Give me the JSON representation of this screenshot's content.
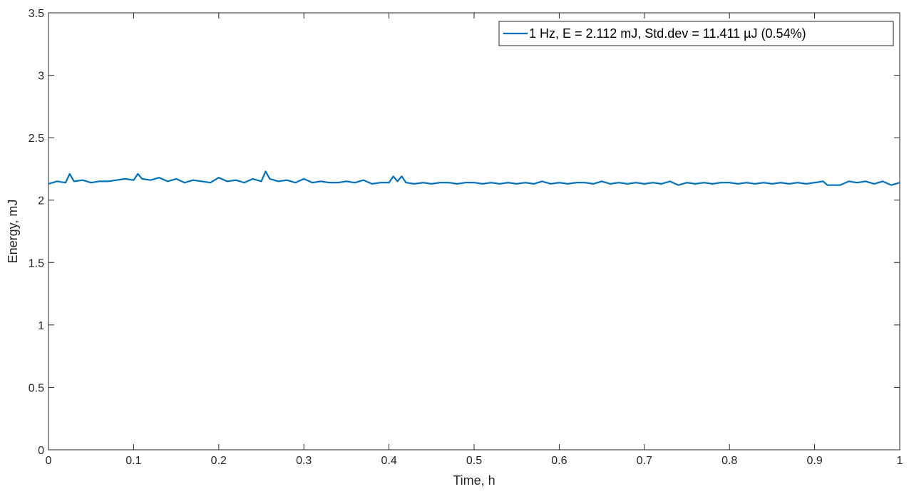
{
  "chart_data": {
    "type": "line",
    "title": "",
    "xlabel": "Time, h",
    "ylabel": "Energy, mJ",
    "xlim": [
      0,
      1
    ],
    "ylim": [
      0,
      3.5
    ],
    "x_ticks": [
      0,
      0.1,
      0.2,
      0.3,
      0.4,
      0.5,
      0.6,
      0.7,
      0.8,
      0.9,
      1
    ],
    "x_tick_labels": [
      "0",
      "0.1",
      "0.2",
      "0.3",
      "0.4",
      "0.5",
      "0.6",
      "0.7",
      "0.8",
      "0.9",
      "1"
    ],
    "y_ticks": [
      0,
      0.5,
      1,
      1.5,
      2,
      2.5,
      3,
      3.5
    ],
    "y_tick_labels": [
      "0",
      "0.5",
      "1",
      "1.5",
      "2",
      "2.5",
      "3",
      "3.5"
    ],
    "grid": false,
    "box": true,
    "legend_position": "top-right",
    "series": [
      {
        "name": "1 Hz, E = 2.112 mJ, Std.dev =  11.411 µJ (0.54%)",
        "color": "#0072BD",
        "x": [
          0,
          0.01,
          0.02,
          0.025,
          0.03,
          0.04,
          0.05,
          0.06,
          0.07,
          0.08,
          0.09,
          0.1,
          0.105,
          0.11,
          0.12,
          0.13,
          0.14,
          0.15,
          0.16,
          0.17,
          0.18,
          0.19,
          0.2,
          0.21,
          0.22,
          0.23,
          0.24,
          0.25,
          0.255,
          0.26,
          0.27,
          0.28,
          0.29,
          0.3,
          0.31,
          0.32,
          0.33,
          0.34,
          0.35,
          0.36,
          0.37,
          0.38,
          0.39,
          0.4,
          0.405,
          0.41,
          0.415,
          0.42,
          0.43,
          0.44,
          0.45,
          0.46,
          0.47,
          0.48,
          0.49,
          0.5,
          0.51,
          0.52,
          0.53,
          0.54,
          0.55,
          0.56,
          0.57,
          0.58,
          0.59,
          0.6,
          0.61,
          0.62,
          0.63,
          0.64,
          0.65,
          0.66,
          0.67,
          0.68,
          0.69,
          0.7,
          0.71,
          0.72,
          0.73,
          0.74,
          0.75,
          0.76,
          0.77,
          0.78,
          0.79,
          0.8,
          0.81,
          0.82,
          0.83,
          0.84,
          0.85,
          0.86,
          0.87,
          0.88,
          0.89,
          0.9,
          0.91,
          0.915,
          0.92,
          0.93,
          0.94,
          0.95,
          0.96,
          0.97,
          0.98,
          0.99,
          1
        ],
        "y": [
          2.13,
          2.15,
          2.14,
          2.21,
          2.15,
          2.16,
          2.14,
          2.15,
          2.15,
          2.16,
          2.17,
          2.16,
          2.21,
          2.17,
          2.16,
          2.18,
          2.15,
          2.17,
          2.14,
          2.16,
          2.15,
          2.14,
          2.18,
          2.15,
          2.16,
          2.14,
          2.17,
          2.15,
          2.23,
          2.17,
          2.15,
          2.16,
          2.14,
          2.17,
          2.14,
          2.15,
          2.14,
          2.14,
          2.15,
          2.14,
          2.16,
          2.13,
          2.14,
          2.14,
          2.19,
          2.15,
          2.19,
          2.14,
          2.13,
          2.14,
          2.13,
          2.14,
          2.14,
          2.13,
          2.14,
          2.14,
          2.13,
          2.14,
          2.13,
          2.14,
          2.13,
          2.14,
          2.13,
          2.15,
          2.13,
          2.14,
          2.13,
          2.14,
          2.14,
          2.13,
          2.15,
          2.13,
          2.14,
          2.13,
          2.14,
          2.13,
          2.14,
          2.13,
          2.15,
          2.12,
          2.14,
          2.13,
          2.14,
          2.13,
          2.14,
          2.14,
          2.13,
          2.14,
          2.13,
          2.14,
          2.13,
          2.14,
          2.13,
          2.14,
          2.13,
          2.14,
          2.15,
          2.12,
          2.12,
          2.12,
          2.15,
          2.14,
          2.15,
          2.13,
          2.15,
          2.12,
          2.14
        ]
      }
    ]
  }
}
